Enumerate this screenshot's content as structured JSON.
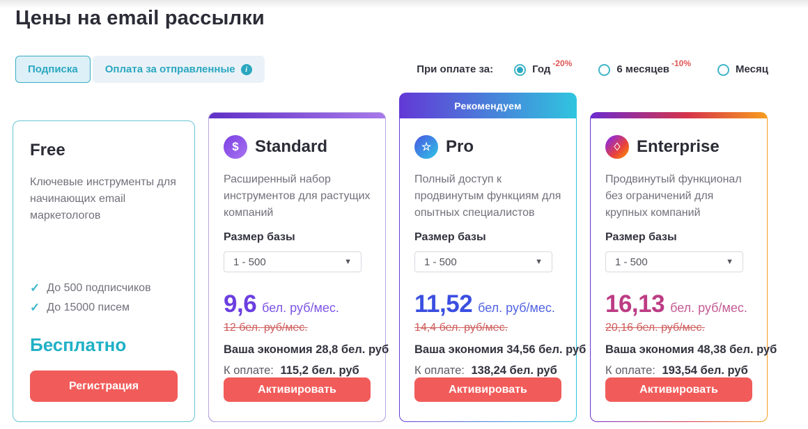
{
  "page": {
    "title": "Цены на email рассылки"
  },
  "tabs": [
    {
      "label": "Подписка",
      "active": true
    },
    {
      "label": "Оплата за отправленные",
      "active": false,
      "has_info_icon": true
    }
  ],
  "billing": {
    "label": "При оплате за:",
    "options": [
      {
        "label": "Год",
        "discount": "-20%",
        "selected": true
      },
      {
        "label": "6 месяцев",
        "discount": "-10%",
        "selected": false
      },
      {
        "label": "Месяц",
        "discount": "",
        "selected": false
      }
    ]
  },
  "plans": {
    "free": {
      "name": "Free",
      "description": "Ключевые инструменты для начинающих email маркетологов",
      "features": [
        "До 500 подписчиков",
        "До 15000 писем"
      ],
      "price_label": "Бесплатно",
      "cta": "Регистрация"
    },
    "standard": {
      "name": "Standard",
      "icon": "dollar-icon",
      "icon_glyph": "$",
      "description": "Расширенный набор инструментов для растущих компаний",
      "base_label": "Размер базы",
      "base_value": "1 - 500",
      "price": "9,6",
      "price_unit": "бел. руб/мес.",
      "old_price": "12 бел. руб/мес.",
      "savings": "Ваша экономия 28,8 бел. руб",
      "pay_label": "К оплате:",
      "pay_value": "115,2 бел. руб",
      "cta": "Активировать"
    },
    "pro": {
      "badge": "Рекомендуем",
      "name": "Pro",
      "icon": "star-icon",
      "icon_glyph": "☆",
      "description": "Полный доступ к продвинутым функциям для опытных специалистов",
      "base_label": "Размер базы",
      "base_value": "1 - 500",
      "price": "11,52",
      "price_unit": "бел. руб/мес.",
      "old_price": "14,4 бел. руб/мес.",
      "savings": "Ваша экономия 34,56 бел. руб",
      "pay_label": "К оплате:",
      "pay_value": "138,24 бел. руб",
      "cta": "Активировать"
    },
    "enterprise": {
      "name": "Enterprise",
      "icon": "gem-icon",
      "icon_glyph": "♢",
      "description": "Продвинутый функционал без ограничений для крупных компаний",
      "base_label": "Размер базы",
      "base_value": "1 - 500",
      "price": "16,13",
      "price_unit": "бел. руб/мес.",
      "old_price": "20,16 бел. руб/мес.",
      "savings": "Ваша экономия 48,38 бел. руб",
      "pay_label": "К оплате:",
      "pay_value": "193,54 бел. руб",
      "cta": "Активировать"
    }
  },
  "colors": {
    "accent_teal": "#2aaec5",
    "cta_red": "#f15c5a",
    "standard_purple": "#6b3fe0",
    "pro_blue": "#3b4fe0",
    "enterprise_pink": "#bc3c84",
    "discount_red": "#e25555"
  }
}
